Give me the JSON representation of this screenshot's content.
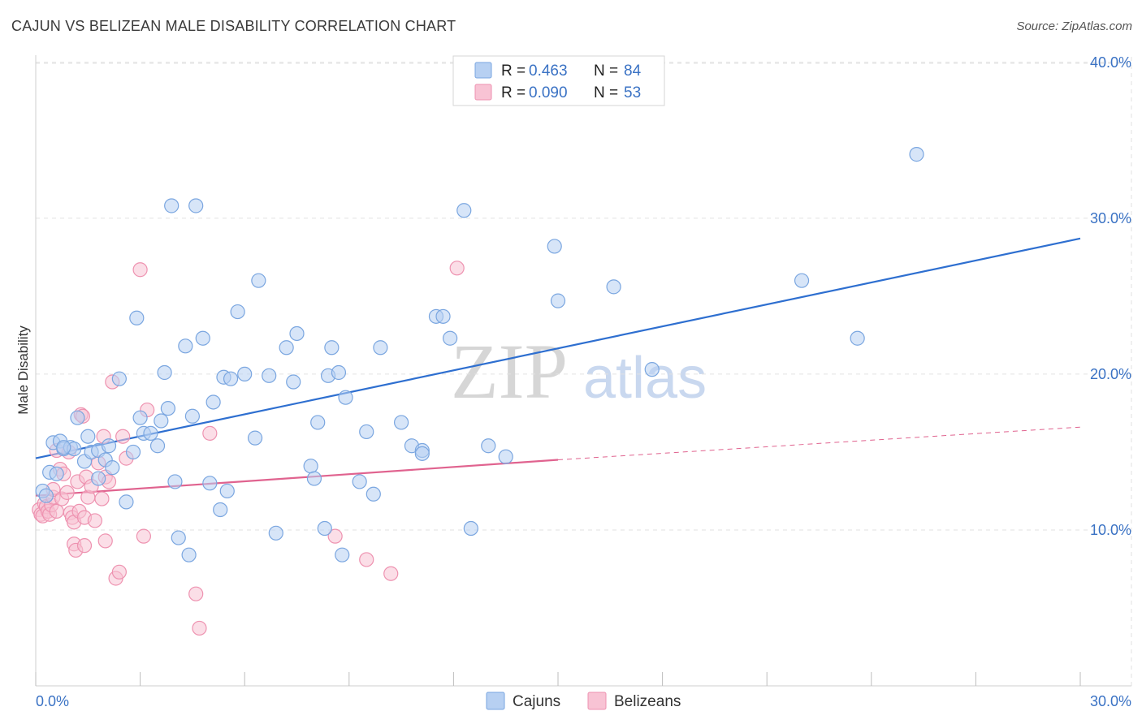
{
  "header": {
    "title": "CAJUN VS BELIZEAN MALE DISABILITY CORRELATION CHART",
    "source": "Source: ZipAtlas.com"
  },
  "watermark": {
    "zip": "ZIP",
    "atlas": "atlas"
  },
  "legend": {
    "rows": [
      {
        "r_label": "R =",
        "r_value": "0.463",
        "n_label": "N =",
        "n_value": "84"
      },
      {
        "r_label": "R =",
        "r_value": "0.090",
        "n_label": "N =",
        "n_value": "53"
      }
    ],
    "bottom": [
      "Cajuns",
      "Belizeans"
    ]
  },
  "colors": {
    "cajun_fill": "#b7d0f2",
    "cajun_stroke": "#7aa6e0",
    "cajun_line": "#2e6fd0",
    "belizean_fill": "#f8c3d4",
    "belizean_stroke": "#ee92b0",
    "belizean_line": "#e0638f",
    "grid": "#e2e2e2",
    "tick_text": "#3a72c4"
  },
  "chart_data": {
    "type": "scatter",
    "title": "CAJUN VS BELIZEAN MALE DISABILITY CORRELATION CHART",
    "xlabel": "",
    "ylabel": "Male Disability",
    "xlim": [
      0,
      30
    ],
    "ylim": [
      0,
      41.5
    ],
    "x_tick_labels": [
      "0.0%",
      "30.0%"
    ],
    "y_ticks": [
      10,
      20,
      30,
      40
    ],
    "y_tick_labels": [
      "10.0%",
      "20.0%",
      "30.0%",
      "40.0%"
    ],
    "grid": true,
    "series": [
      {
        "name": "Cajuns",
        "R": 0.463,
        "N": 84,
        "trend": {
          "x": [
            0,
            30
          ],
          "y": [
            14.6,
            28.7
          ]
        },
        "points": [
          [
            0.2,
            12.5
          ],
          [
            0.3,
            12.2
          ],
          [
            0.4,
            13.7
          ],
          [
            0.5,
            15.6
          ],
          [
            0.6,
            13.6
          ],
          [
            0.7,
            15.7
          ],
          [
            0.8,
            15.2
          ],
          [
            1.0,
            15.3
          ],
          [
            1.1,
            15.2
          ],
          [
            1.2,
            17.2
          ],
          [
            1.4,
            14.4
          ],
          [
            1.5,
            16.0
          ],
          [
            1.6,
            15.0
          ],
          [
            1.8,
            13.3
          ],
          [
            1.8,
            15.1
          ],
          [
            2.0,
            14.5
          ],
          [
            2.1,
            15.4
          ],
          [
            2.2,
            14.0
          ],
          [
            2.4,
            19.7
          ],
          [
            2.6,
            11.8
          ],
          [
            2.8,
            15.0
          ],
          [
            2.9,
            23.6
          ],
          [
            3.0,
            17.2
          ],
          [
            3.1,
            16.2
          ],
          [
            3.3,
            16.2
          ],
          [
            3.5,
            15.4
          ],
          [
            3.6,
            17.0
          ],
          [
            3.7,
            20.1
          ],
          [
            3.8,
            17.8
          ],
          [
            3.9,
            30.8
          ],
          [
            4.0,
            13.1
          ],
          [
            4.1,
            9.5
          ],
          [
            4.3,
            21.8
          ],
          [
            4.4,
            8.4
          ],
          [
            4.5,
            17.3
          ],
          [
            4.6,
            30.8
          ],
          [
            4.8,
            22.3
          ],
          [
            5.0,
            13.0
          ],
          [
            5.1,
            18.2
          ],
          [
            5.3,
            11.3
          ],
          [
            5.4,
            19.8
          ],
          [
            5.5,
            12.5
          ],
          [
            5.6,
            19.7
          ],
          [
            5.8,
            24.0
          ],
          [
            6.0,
            20.0
          ],
          [
            6.3,
            15.9
          ],
          [
            6.4,
            26.0
          ],
          [
            6.7,
            19.9
          ],
          [
            6.9,
            9.8
          ],
          [
            7.2,
            21.7
          ],
          [
            7.4,
            19.5
          ],
          [
            7.5,
            22.6
          ],
          [
            7.9,
            14.1
          ],
          [
            8.0,
            13.3
          ],
          [
            8.1,
            16.9
          ],
          [
            8.3,
            10.1
          ],
          [
            8.4,
            19.9
          ],
          [
            8.5,
            21.7
          ],
          [
            8.7,
            20.1
          ],
          [
            8.8,
            8.4
          ],
          [
            8.9,
            18.5
          ],
          [
            9.3,
            13.1
          ],
          [
            9.5,
            16.3
          ],
          [
            9.7,
            12.3
          ],
          [
            9.9,
            21.7
          ],
          [
            10.5,
            16.9
          ],
          [
            10.8,
            15.4
          ],
          [
            11.1,
            15.1
          ],
          [
            11.1,
            14.9
          ],
          [
            11.5,
            23.7
          ],
          [
            11.7,
            23.7
          ],
          [
            11.9,
            22.3
          ],
          [
            12.3,
            30.5
          ],
          [
            12.5,
            10.1
          ],
          [
            13.0,
            15.4
          ],
          [
            13.5,
            14.7
          ],
          [
            14.9,
            28.2
          ],
          [
            15.0,
            24.7
          ],
          [
            16.6,
            25.6
          ],
          [
            17.7,
            20.3
          ],
          [
            22.0,
            26.0
          ],
          [
            23.6,
            22.3
          ],
          [
            25.3,
            34.1
          ],
          [
            0.8,
            15.3
          ]
        ]
      },
      {
        "name": "Belizeans",
        "R": 0.09,
        "N": 53,
        "trend": {
          "x": [
            0,
            15.0
          ],
          "y": [
            12.2,
            14.5
          ]
        },
        "trend_extension": {
          "x": [
            15.0,
            30
          ],
          "y": [
            14.5,
            16.6
          ]
        },
        "points": [
          [
            0.1,
            11.3
          ],
          [
            0.15,
            11.0
          ],
          [
            0.2,
            10.9
          ],
          [
            0.25,
            11.7
          ],
          [
            0.3,
            11.5
          ],
          [
            0.35,
            11.2
          ],
          [
            0.4,
            11.0
          ],
          [
            0.45,
            11.6
          ],
          [
            0.5,
            12.1
          ],
          [
            0.5,
            12.6
          ],
          [
            0.6,
            11.2
          ],
          [
            0.6,
            15.1
          ],
          [
            0.7,
            13.9
          ],
          [
            0.75,
            12.0
          ],
          [
            0.8,
            13.6
          ],
          [
            0.9,
            12.4
          ],
          [
            0.95,
            15.0
          ],
          [
            1.0,
            11.1
          ],
          [
            1.05,
            10.8
          ],
          [
            1.1,
            9.1
          ],
          [
            1.1,
            10.5
          ],
          [
            1.15,
            8.7
          ],
          [
            1.2,
            13.1
          ],
          [
            1.25,
            11.2
          ],
          [
            1.3,
            17.4
          ],
          [
            1.35,
            17.3
          ],
          [
            1.4,
            10.8
          ],
          [
            1.45,
            13.4
          ],
          [
            1.5,
            12.1
          ],
          [
            1.6,
            12.8
          ],
          [
            1.7,
            10.6
          ],
          [
            1.8,
            14.3
          ],
          [
            1.9,
            12.0
          ],
          [
            1.95,
            16.0
          ],
          [
            2.0,
            13.4
          ],
          [
            2.0,
            9.3
          ],
          [
            2.1,
            13.1
          ],
          [
            2.2,
            19.5
          ],
          [
            2.3,
            6.9
          ],
          [
            2.4,
            7.3
          ],
          [
            2.5,
            16.0
          ],
          [
            2.6,
            14.6
          ],
          [
            3.0,
            26.7
          ],
          [
            3.1,
            9.6
          ],
          [
            3.2,
            17.7
          ],
          [
            4.6,
            5.9
          ],
          [
            4.7,
            3.7
          ],
          [
            5.0,
            16.2
          ],
          [
            8.6,
            9.6
          ],
          [
            9.5,
            8.1
          ],
          [
            10.2,
            7.2
          ],
          [
            12.1,
            26.8
          ],
          [
            1.4,
            9.0
          ]
        ]
      }
    ]
  }
}
